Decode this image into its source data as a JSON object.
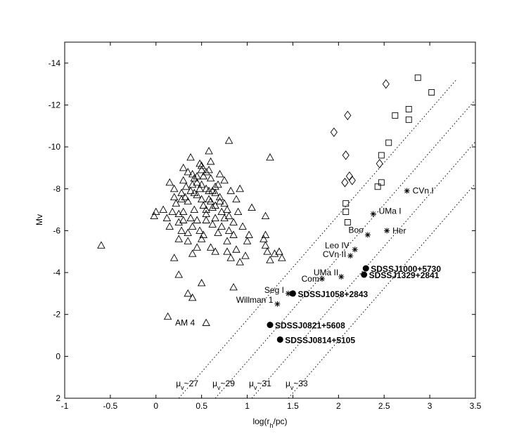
{
  "chart_data": {
    "type": "scatter",
    "xlabel": "log(r_h/pc)",
    "ylabel": "Mv",
    "xlim": [
      -1,
      3.5
    ],
    "ylim": [
      2,
      -15
    ],
    "x_ticks": [
      -1,
      -0.5,
      0,
      0.5,
      1,
      1.5,
      2,
      2.5,
      3,
      3.5
    ],
    "x_tick_labels": [
      "-1",
      "-0.5",
      "0",
      "0.5",
      "1",
      "1.5",
      "2",
      "2.5",
      "3",
      "3.5"
    ],
    "y_ticks": [
      -14,
      -12,
      -10,
      -8,
      -6,
      -4,
      -2,
      0,
      2
    ],
    "y_tick_labels": [
      "-14",
      "-12",
      "-10",
      "-8",
      "-6",
      "-4",
      "-2",
      "0",
      "2"
    ],
    "grid": false,
    "series": [
      {
        "marker": "triangle",
        "points": [
          [
            -0.6,
            -5.3
          ],
          [
            -0.02,
            -6.7
          ],
          [
            0.0,
            -6.9
          ],
          [
            0.08,
            -7.0
          ],
          [
            0.12,
            -6.6
          ],
          [
            0.15,
            -6.2
          ],
          [
            0.13,
            -1.9
          ],
          [
            0.2,
            -4.7
          ],
          [
            0.25,
            -3.9
          ],
          [
            0.35,
            -3.0
          ],
          [
            0.4,
            -2.8
          ],
          [
            0.5,
            -3.5
          ],
          [
            0.55,
            -1.6
          ],
          [
            0.65,
            -5.0
          ],
          [
            0.78,
            -5.0
          ],
          [
            0.85,
            -3.3
          ],
          [
            0.82,
            -4.7
          ],
          [
            0.88,
            -5.1
          ],
          [
            0.92,
            -4.5
          ],
          [
            0.98,
            -4.8
          ],
          [
            1.0,
            -5.5
          ],
          [
            1.02,
            -5.8
          ],
          [
            1.05,
            -7.1
          ],
          [
            1.2,
            -6.7
          ],
          [
            1.18,
            -5.6
          ],
          [
            1.2,
            -5.3
          ],
          [
            1.25,
            -4.6
          ],
          [
            1.3,
            -4.9
          ],
          [
            1.38,
            -4.7
          ],
          [
            1.35,
            -5.0
          ],
          [
            1.25,
            -9.5
          ],
          [
            1.2,
            -5.8
          ],
          [
            1.22,
            -5.0
          ],
          [
            0.8,
            -10.3
          ],
          [
            0.58,
            -9.8
          ],
          [
            0.15,
            -8.3
          ],
          [
            0.2,
            -8.0
          ],
          [
            0.22,
            -7.3
          ],
          [
            0.25,
            -6.8
          ],
          [
            0.28,
            -7.5
          ],
          [
            0.3,
            -8.4
          ],
          [
            0.3,
            -9.0
          ],
          [
            0.32,
            -7.6
          ],
          [
            0.35,
            -8.8
          ],
          [
            0.38,
            -9.5
          ],
          [
            0.4,
            -8.2
          ],
          [
            0.42,
            -7.8
          ],
          [
            0.42,
            -7.0
          ],
          [
            0.45,
            -6.5
          ],
          [
            0.45,
            -8.6
          ],
          [
            0.48,
            -9.2
          ],
          [
            0.5,
            -8.9
          ],
          [
            0.5,
            -7.5
          ],
          [
            0.52,
            -7.2
          ],
          [
            0.55,
            -8.0
          ],
          [
            0.55,
            -6.8
          ],
          [
            0.58,
            -7.9
          ],
          [
            0.6,
            -8.5
          ],
          [
            0.6,
            -7.4
          ],
          [
            0.62,
            -7.1
          ],
          [
            0.65,
            -7.8
          ],
          [
            0.65,
            -6.6
          ],
          [
            0.68,
            -8.2
          ],
          [
            0.7,
            -7.6
          ],
          [
            0.72,
            -6.9
          ],
          [
            0.75,
            -8.4
          ],
          [
            0.75,
            -7.3
          ],
          [
            0.78,
            -7.0
          ],
          [
            0.8,
            -6.7
          ],
          [
            0.82,
            -7.9
          ],
          [
            0.85,
            -6.4
          ],
          [
            0.88,
            -7.5
          ],
          [
            0.9,
            -6.9
          ],
          [
            0.92,
            -8.0
          ],
          [
            0.95,
            -6.2
          ],
          [
            0.45,
            -8.3
          ],
          [
            0.4,
            -8.7
          ],
          [
            0.35,
            -7.4
          ],
          [
            0.3,
            -6.5
          ],
          [
            0.28,
            -6.0
          ],
          [
            0.25,
            -5.6
          ],
          [
            0.35,
            -5.9
          ],
          [
            0.4,
            -6.2
          ],
          [
            0.48,
            -6.0
          ],
          [
            0.52,
            -5.8
          ],
          [
            0.55,
            -6.5
          ],
          [
            0.58,
            -7.5
          ],
          [
            0.62,
            -6.3
          ],
          [
            0.68,
            -5.9
          ],
          [
            0.72,
            -6.2
          ],
          [
            0.5,
            -5.6
          ],
          [
            0.45,
            -5.2
          ],
          [
            0.35,
            -5.5
          ],
          [
            0.3,
            -6.9
          ],
          [
            0.38,
            -7.9
          ],
          [
            0.42,
            -8.5
          ],
          [
            0.48,
            -8.0
          ],
          [
            0.52,
            -8.6
          ],
          [
            0.55,
            -8.8
          ],
          [
            0.6,
            -9.3
          ],
          [
            0.65,
            -8.1
          ],
          [
            0.7,
            -8.7
          ],
          [
            0.28,
            -7.8
          ],
          [
            0.33,
            -8.1
          ],
          [
            0.5,
            -8.2
          ],
          [
            0.62,
            -7.9
          ],
          [
            0.7,
            -7.4
          ],
          [
            0.75,
            -6.6
          ],
          [
            0.8,
            -6.0
          ],
          [
            0.85,
            -5.8
          ],
          [
            0.78,
            -5.5
          ],
          [
            0.6,
            -5.2
          ],
          [
            0.4,
            -4.9
          ],
          [
            0.25,
            -6.4
          ],
          [
            0.2,
            -7.6
          ],
          [
            0.18,
            -6.9
          ],
          [
            0.55,
            -7.0
          ],
          [
            0.45,
            -7.7
          ],
          [
            0.38,
            -6.6
          ],
          [
            0.65,
            -7.2
          ],
          [
            0.58,
            -8.9
          ],
          [
            0.5,
            -9.1
          ]
        ]
      },
      {
        "marker": "diamond",
        "points": [
          [
            1.95,
            -10.7
          ],
          [
            2.1,
            -11.5
          ],
          [
            2.52,
            -13.0
          ],
          [
            2.08,
            -9.6
          ],
          [
            2.12,
            -8.6
          ],
          [
            2.15,
            -8.4
          ],
          [
            2.07,
            -8.3
          ],
          [
            2.45,
            -9.2
          ]
        ]
      },
      {
        "marker": "square",
        "points": [
          [
            2.87,
            -13.3
          ],
          [
            3.02,
            -12.6
          ],
          [
            2.77,
            -11.8
          ],
          [
            2.62,
            -11.5
          ],
          [
            2.77,
            -11.3
          ],
          [
            2.55,
            -10.2
          ],
          [
            2.47,
            -9.6
          ],
          [
            2.47,
            -8.3
          ],
          [
            2.43,
            -8.1
          ],
          [
            2.08,
            -7.3
          ],
          [
            2.08,
            -6.9
          ],
          [
            2.1,
            -6.4
          ]
        ]
      },
      {
        "marker": "asterisk",
        "points": [
          [
            2.75,
            -7.9
          ],
          [
            2.38,
            -6.8
          ],
          [
            2.53,
            -6.0
          ],
          [
            2.32,
            -5.8
          ],
          [
            2.18,
            -5.1
          ],
          [
            2.13,
            -4.8
          ],
          [
            2.03,
            -3.8
          ],
          [
            1.82,
            -3.7
          ],
          [
            1.45,
            -3.0
          ],
          [
            1.33,
            -2.5
          ]
        ]
      },
      {
        "marker": "filled-circle",
        "points": [
          [
            2.3,
            -4.2
          ],
          [
            2.28,
            -3.9
          ],
          [
            1.5,
            -3.0
          ],
          [
            1.25,
            -1.5
          ],
          [
            1.36,
            -0.8
          ]
        ]
      }
    ],
    "labels": [
      {
        "text": "CVn I",
        "x": 2.75,
        "y": -7.9
      },
      {
        "text": "UMa I",
        "x": 2.38,
        "y": -6.8
      },
      {
        "text": "Boo",
        "x": 2.32,
        "y": -5.8
      },
      {
        "text": "Her",
        "x": 2.53,
        "y": -6.0
      },
      {
        "text": "Leo IV",
        "x": 2.18,
        "y": -5.1
      },
      {
        "text": "CVn II",
        "x": 2.13,
        "y": -4.8
      },
      {
        "text": "UMa II",
        "x": 2.03,
        "y": -3.8
      },
      {
        "text": "Com",
        "x": 1.82,
        "y": -3.7
      },
      {
        "text": "Seg I",
        "x": 1.45,
        "y": -3.0
      },
      {
        "text": "Willman 1",
        "x": 1.33,
        "y": -2.5
      },
      {
        "text": "AM 4",
        "x": 0.55,
        "y": -1.6
      }
    ],
    "sdss_labels": [
      {
        "text": "SDSSJ1000+5730",
        "x": 2.3,
        "y": -4.2
      },
      {
        "text": "SDSSJ1329+2841",
        "x": 2.28,
        "y": -3.9
      },
      {
        "text": "SDSSJ1058+2843",
        "x": 1.5,
        "y": -3.0
      },
      {
        "text": "SDSSJ0821+5608",
        "x": 1.25,
        "y": -1.5
      },
      {
        "text": "SDSSJ0814+5105",
        "x": 1.36,
        "y": -0.8
      }
    ],
    "surface_brightness_lines": [
      {
        "label": "μ",
        "sub": "v",
        "suffix": "~27",
        "x0": 0.25,
        "x1": 3.3
      },
      {
        "label": "μ",
        "sub": "v",
        "suffix": "~29",
        "x0": 0.65,
        "x1": 3.5
      },
      {
        "label": "μ",
        "sub": "v",
        "suffix": "~31",
        "x0": 1.05,
        "x1": 3.5
      },
      {
        "label": "μ",
        "sub": "v",
        "suffix": "~33",
        "x0": 1.45,
        "x1": 3.5
      }
    ]
  }
}
